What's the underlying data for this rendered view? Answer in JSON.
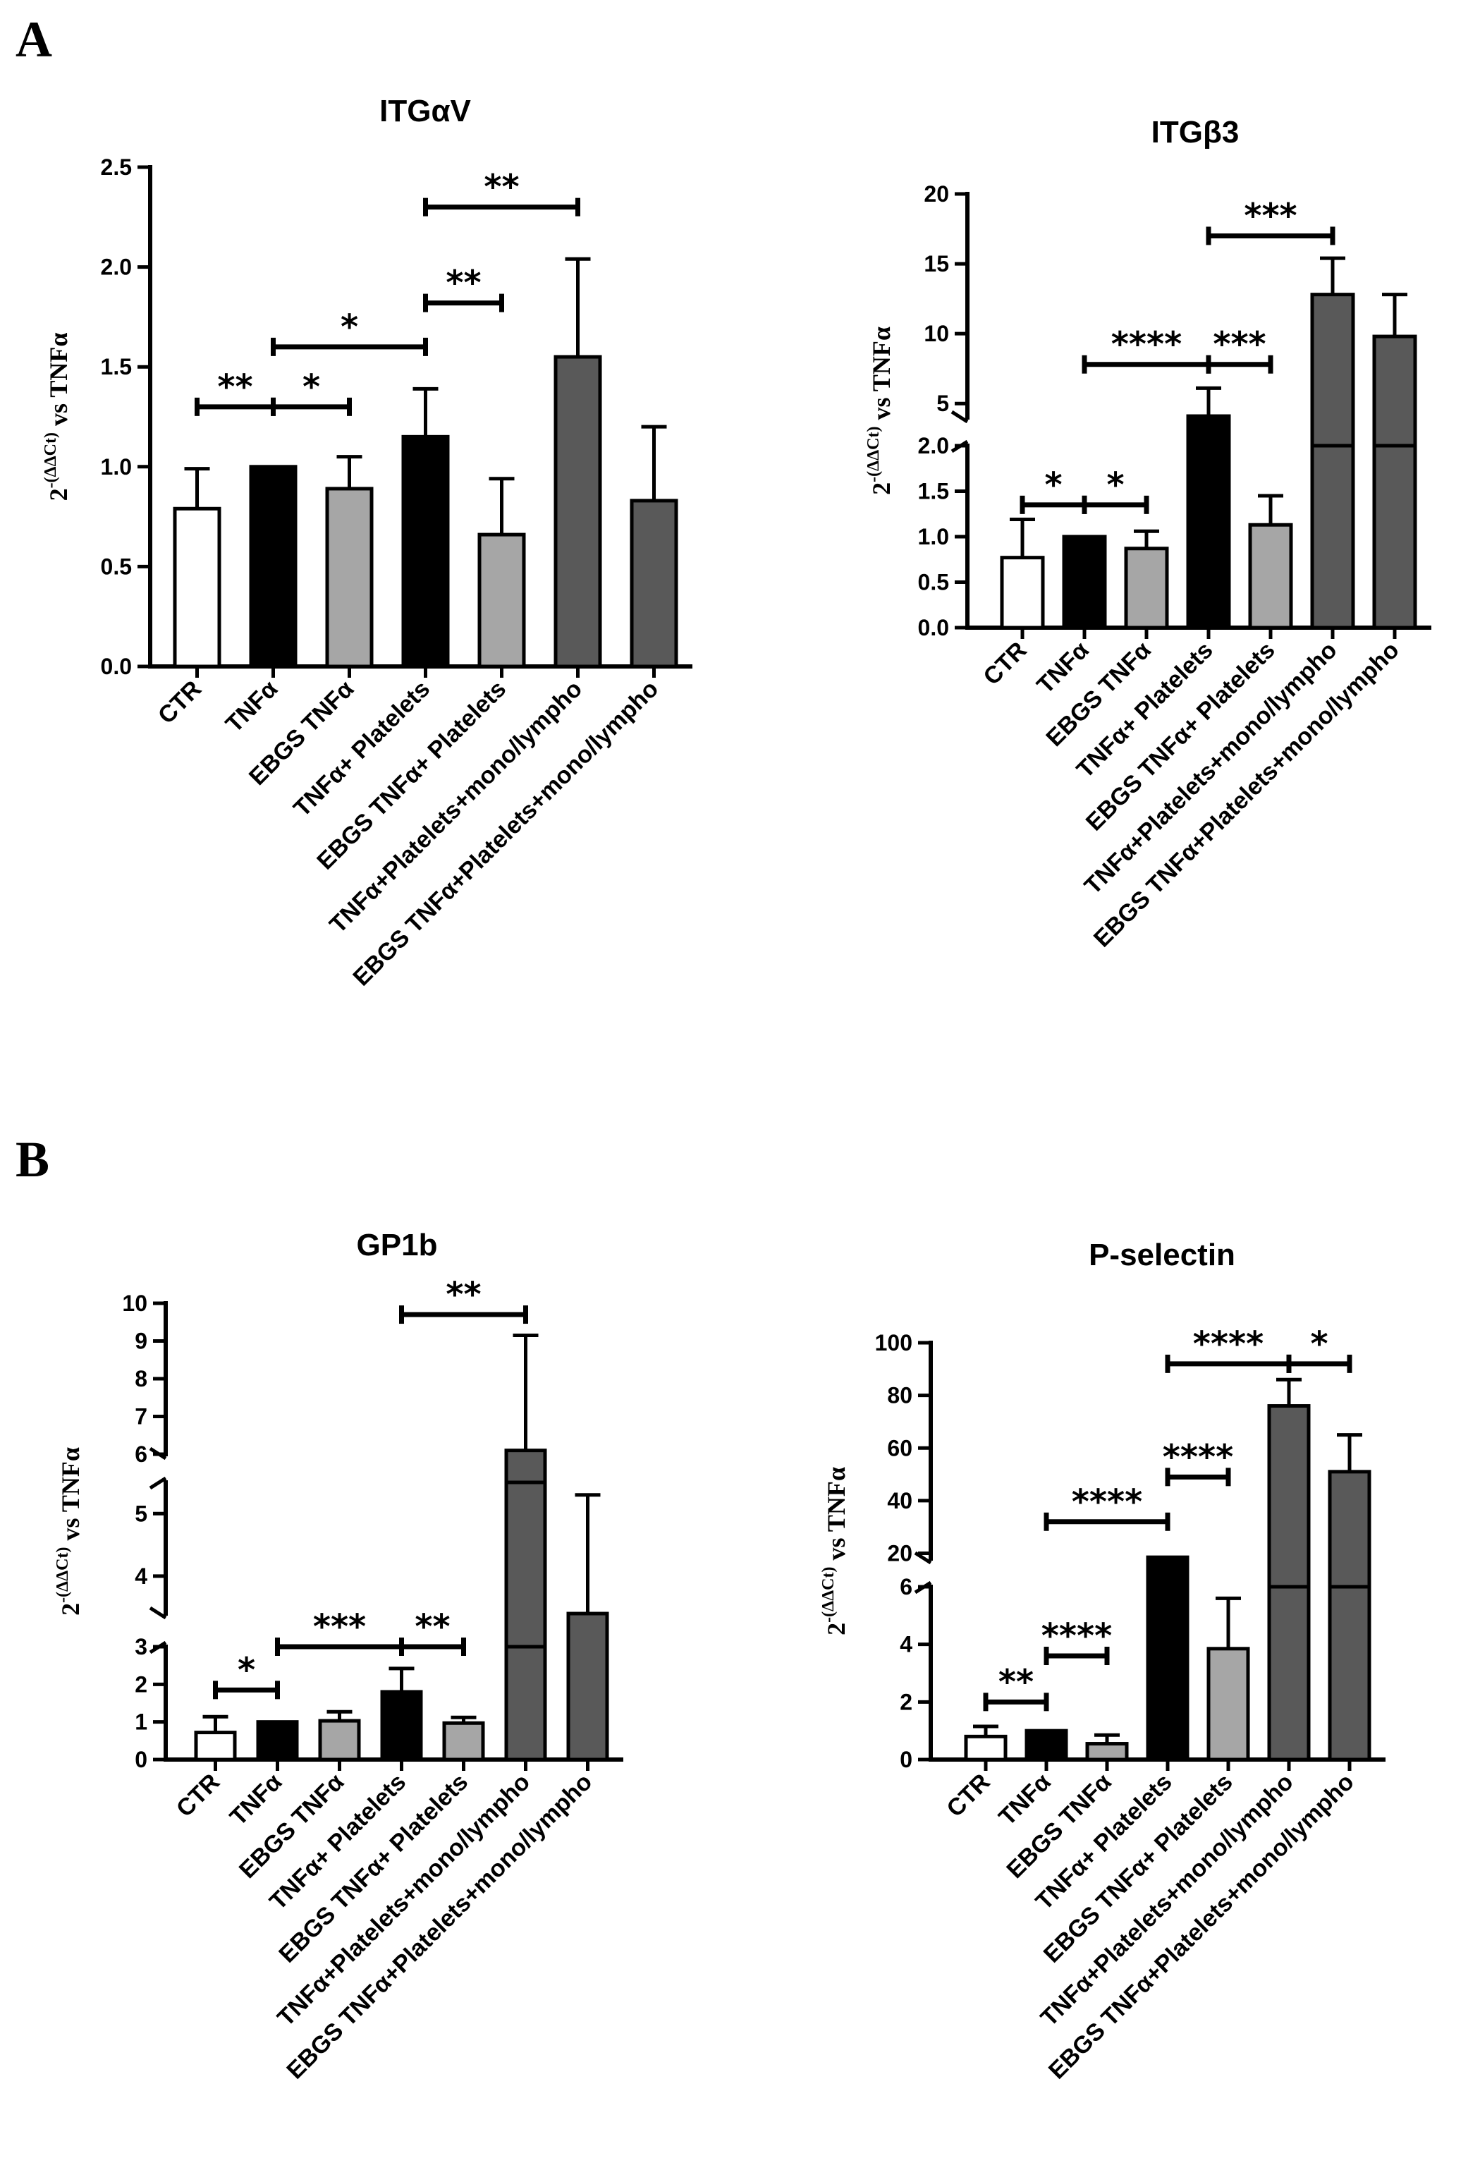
{
  "panel_letters": [
    "A",
    "B"
  ],
  "y_axis_label": {
    "base": "2",
    "exponent": "-(ΔΔCt)",
    "rest": " vs TNFα"
  },
  "chart_data": [
    {
      "id": "itgav",
      "type": "bar",
      "title": "ITGαV",
      "ylabel": "2-(ΔΔCt) vs TNFα",
      "categories": [
        "CTR",
        "TNFα",
        "EBGS TNFα",
        "TNFα+ Platelets",
        "EBGS TNFα+ Platelets",
        "TNFα+Platelets+mono/lympho",
        "EBGS TNFα+Platelets+mono/lympho"
      ],
      "values": [
        0.79,
        1.0,
        0.89,
        1.15,
        0.66,
        1.55,
        0.83
      ],
      "errors": [
        0.2,
        0.0,
        0.16,
        0.24,
        0.28,
        0.49,
        0.37
      ],
      "colors": [
        "#ffffff",
        "#000000",
        "#a6a6a6",
        "#000000",
        "#a6a6a6",
        "#595959",
        "#595959"
      ],
      "ylim": [
        0,
        2.5
      ],
      "yticks": [
        "0.0",
        "0.5",
        "1.0",
        "1.5",
        "2.0",
        "2.5"
      ],
      "significance": [
        {
          "from": 0,
          "to": 1,
          "label": "**",
          "y": 1.3
        },
        {
          "from": 1,
          "to": 2,
          "label": "*",
          "y": 1.3
        },
        {
          "from": 1,
          "to": 3,
          "label": "*",
          "y": 1.6
        },
        {
          "from": 3,
          "to": 4,
          "label": "**",
          "y": 1.82
        },
        {
          "from": 3,
          "to": 5,
          "label": "**",
          "y": 2.3
        }
      ]
    },
    {
      "id": "itgb3",
      "type": "bar",
      "title": "ITGβ3",
      "ylabel": "2-(ΔΔCt) vs TNFα",
      "categories": [
        "CTR",
        "TNFα",
        "EBGS TNFα",
        "TNFα+ Platelets",
        "EBGS TNFα+ Platelets",
        "TNFα+Platelets+mono/lympho",
        "EBGS TNFα+Platelets+mono/lympho"
      ],
      "values": [
        0.77,
        1.0,
        0.87,
        4.1,
        1.13,
        12.8,
        9.8
      ],
      "errors": [
        0.42,
        0.0,
        0.19,
        2.0,
        0.32,
        2.6,
        3.0
      ],
      "colors": [
        "#ffffff",
        "#000000",
        "#a6a6a6",
        "#000000",
        "#a6a6a6",
        "#595959",
        "#595959"
      ],
      "ylim": [
        0,
        20
      ],
      "axis_break": [
        2.0,
        4.0
      ],
      "yticks": [
        "0.0",
        "0.5",
        "1.0",
        "1.5",
        "2.0",
        "5",
        "10",
        "15",
        "20"
      ],
      "significance": [
        {
          "from": 0,
          "to": 1,
          "label": "*",
          "y": 1.35
        },
        {
          "from": 1,
          "to": 2,
          "label": "*",
          "y": 1.35
        },
        {
          "from": 1,
          "to": 3,
          "label": "****",
          "y": 7.8
        },
        {
          "from": 3,
          "to": 4,
          "label": "***",
          "y": 7.8
        },
        {
          "from": 3,
          "to": 5,
          "label": "***",
          "y": 17.0
        }
      ]
    },
    {
      "id": "gp1b",
      "type": "bar",
      "title": "GP1b",
      "ylabel": "2-(ΔΔCt) vs TNFα",
      "categories": [
        "CTR",
        "TNFα",
        "EBGS TNFα",
        "TNFα+ Platelets",
        "EBGS TNFα+ Platelets",
        "TNFα+Platelets+mono/lympho",
        "EBGS TNFα+Platelets+mono/lympho"
      ],
      "values": [
        0.72,
        1.0,
        1.03,
        1.8,
        0.97,
        6.1,
        3.4
      ],
      "errors": [
        0.42,
        0.0,
        0.24,
        0.62,
        0.15,
        3.05,
        1.9
      ],
      "colors": [
        "#ffffff",
        "#000000",
        "#a6a6a6",
        "#000000",
        "#a6a6a6",
        "#595959",
        "#595959"
      ],
      "ylim": [
        0,
        10
      ],
      "yticks": [
        "0",
        "1",
        "2",
        "3",
        "4",
        "5",
        "6",
        "7",
        "8",
        "9",
        "10"
      ],
      "significance": [
        {
          "from": 0,
          "to": 1,
          "label": "*",
          "y": 1.85
        },
        {
          "from": 1,
          "to": 3,
          "label": "***",
          "y": 3.0
        },
        {
          "from": 3,
          "to": 4,
          "label": "**",
          "y": 3.0
        },
        {
          "from": 3,
          "to": 5,
          "label": "**",
          "y": 9.7
        }
      ]
    },
    {
      "id": "pselectin",
      "type": "bar",
      "title": "P-selectin",
      "ylabel": "2-(ΔΔCt) vs TNFα",
      "categories": [
        "CTR",
        "TNFα",
        "EBGS TNFα",
        "TNFα+ Platelets",
        "EBGS TNFα+ Platelets",
        "TNFα+Platelets+mono/lympho",
        "EBGS TNFα+Platelets+mono/lympho"
      ],
      "values": [
        0.8,
        1.0,
        0.55,
        18.5,
        3.85,
        76,
        51
      ],
      "errors": [
        0.35,
        0.0,
        0.3,
        0.0,
        1.75,
        10,
        14
      ],
      "colors": [
        "#ffffff",
        "#000000",
        "#a6a6a6",
        "#000000",
        "#a6a6a6",
        "#595959",
        "#595959"
      ],
      "ylim": [
        0,
        100
      ],
      "axis_break": [
        6,
        20
      ],
      "yticks": [
        "0",
        "2",
        "4",
        "6",
        "20",
        "40",
        "60",
        "80",
        "100"
      ],
      "significance": [
        {
          "from": 0,
          "to": 1,
          "label": "**",
          "y": 2.0
        },
        {
          "from": 1,
          "to": 2,
          "label": "****",
          "y": 3.6
        },
        {
          "from": 1,
          "to": 3,
          "label": "****",
          "y": 32
        },
        {
          "from": 3,
          "to": 4,
          "label": "****",
          "y": 49
        },
        {
          "from": 3,
          "to": 5,
          "label": "****",
          "y": 92
        },
        {
          "from": 5,
          "to": 6,
          "label": "*",
          "y": 92
        }
      ]
    }
  ]
}
